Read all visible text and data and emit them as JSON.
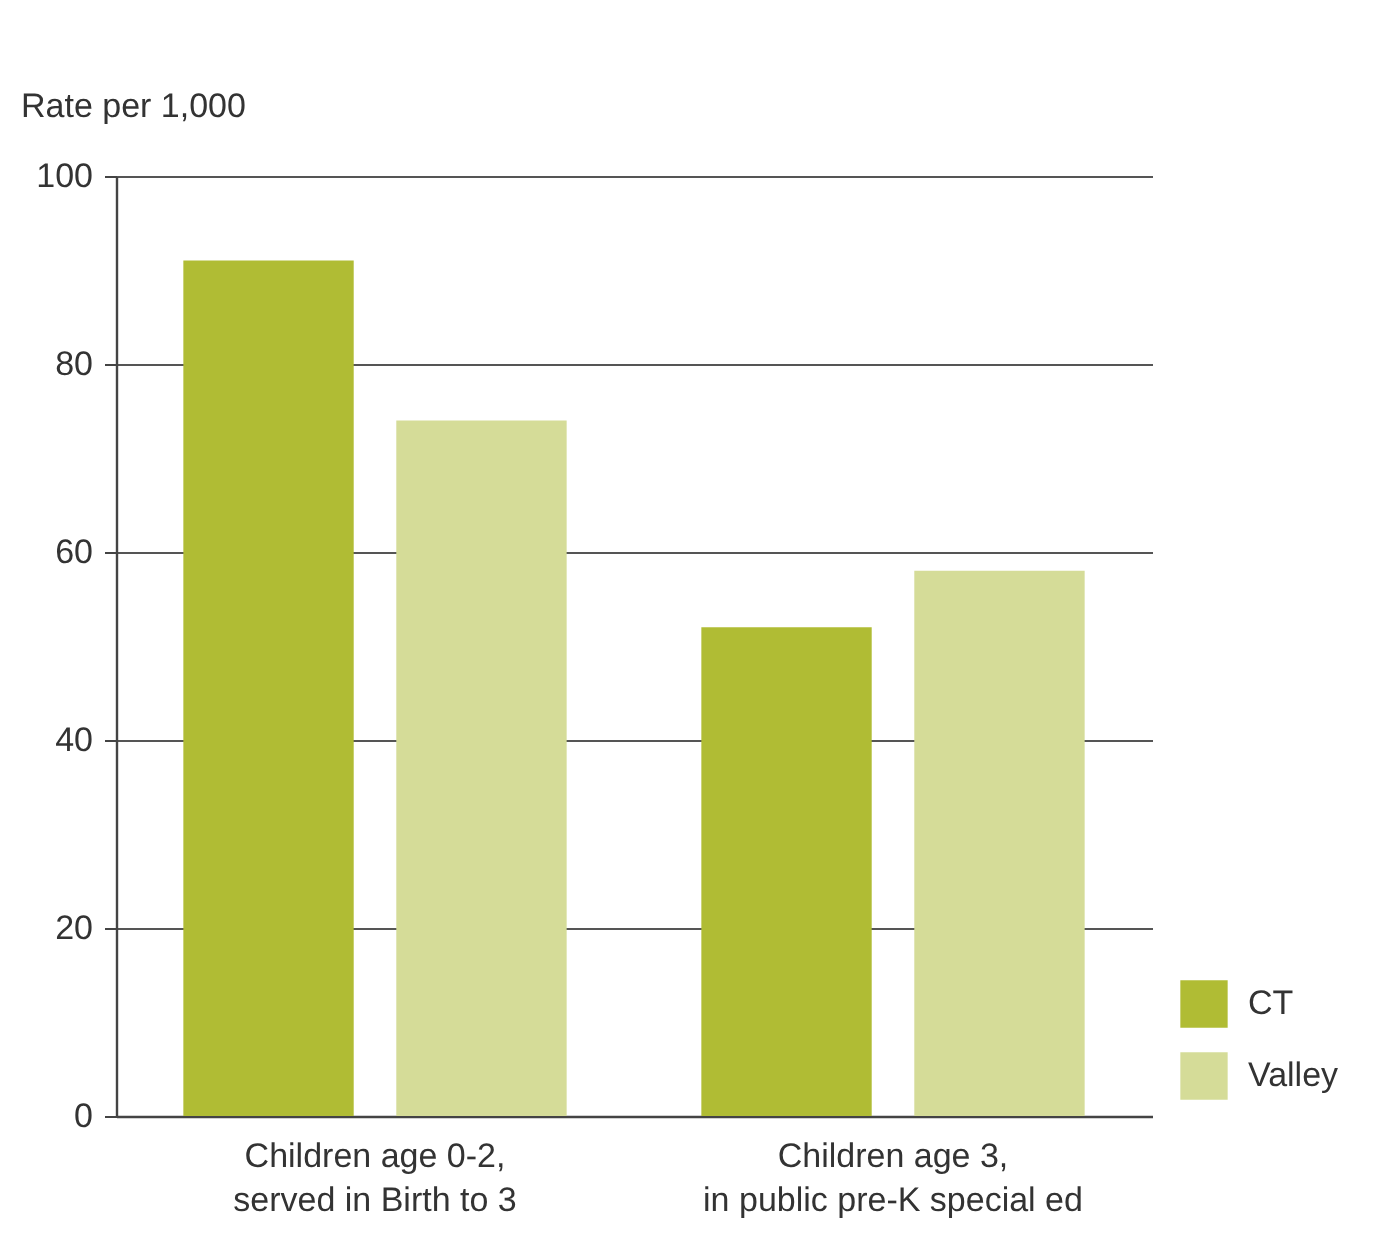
{
  "chart_data": {
    "type": "bar",
    "ylabel": "Rate per 1,000",
    "categories": [
      "Children age 0-2,\nserved in Birth to 3",
      "Children age 3,\nin public pre-K special ed"
    ],
    "series": [
      {
        "name": "CT",
        "color": "#b0bc34",
        "values": [
          91,
          52
        ]
      },
      {
        "name": "Valley",
        "color": "#d5dc98",
        "values": [
          74,
          58
        ]
      }
    ],
    "ylim": [
      0,
      100
    ],
    "yticks": [
      0,
      20,
      40,
      60,
      80,
      100
    ],
    "grid": "y",
    "legend": "bottom right"
  }
}
